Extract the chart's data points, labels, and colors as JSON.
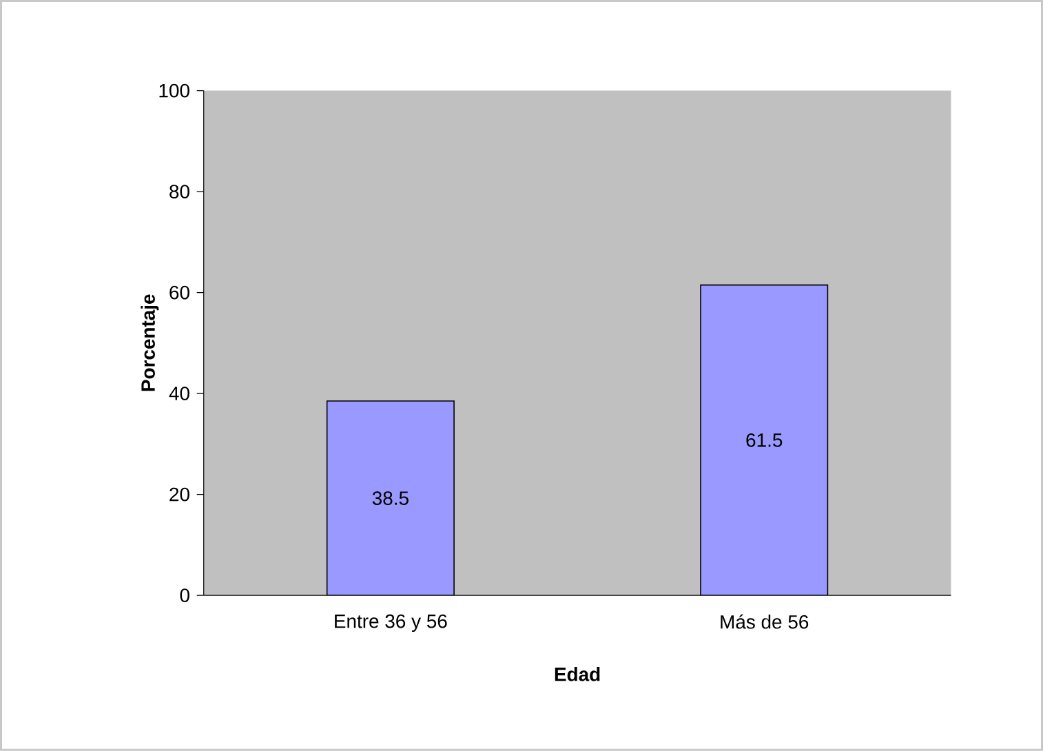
{
  "chart_data": {
    "type": "bar",
    "xlabel": "Edad",
    "ylabel": "Porcentaje",
    "categories": [
      "Entre 36 y 56",
      "Más de 56"
    ],
    "values": [
      38.5,
      61.5
    ],
    "color": "#9999ff",
    "ylim": [
      0,
      100
    ],
    "yticks": [
      0,
      20,
      40,
      60,
      80,
      100
    ],
    "data_labels": true
  }
}
